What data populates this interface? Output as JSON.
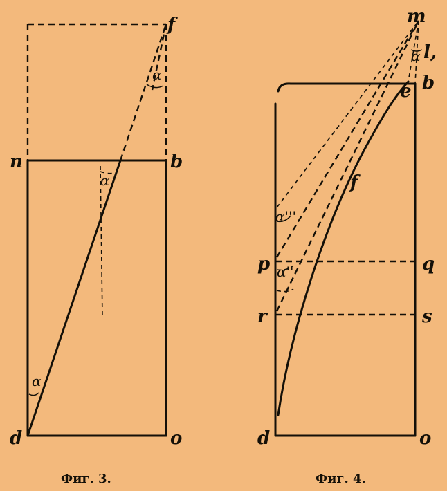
{
  "figures": [
    {
      "caption": "Фиг. 3.",
      "point_labels": {
        "n": "n",
        "b": "b",
        "f": "f",
        "d": "d",
        "o": "o"
      },
      "angle_label": "α"
    },
    {
      "caption": "Фиг. 4.",
      "point_labels": {
        "m": "m",
        "l": "l,",
        "b": "b",
        "e": "e",
        "f": "f",
        "p": "p",
        "q": "q",
        "r": "r",
        "s": "s",
        "d": "d",
        "o": "o"
      },
      "angle_labels": {
        "top": "α",
        "upper": "α'''",
        "middle": "α''"
      }
    }
  ]
}
